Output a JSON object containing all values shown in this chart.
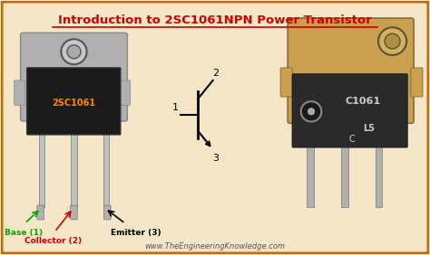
{
  "title": "Introduction to 2SC1061NPN Power Transistor",
  "title_color": "#cc0000",
  "bg_color": "#f5e6c8",
  "border_color": "#cc6600",
  "website": "www.TheEngineeringKnowledge.com",
  "website_color": "#555555",
  "transistor_label": "2SC1061",
  "transistor_label_color": "#ff8800",
  "base_label": "Base (1)",
  "base_color": "#00aa00",
  "collector_label": "Collector (2)",
  "collector_color": "#cc0000",
  "emitter_label": "Emitter (3)",
  "emitter_color": "#000000",
  "pin1": "1",
  "pin2": "2",
  "pin3": "3"
}
